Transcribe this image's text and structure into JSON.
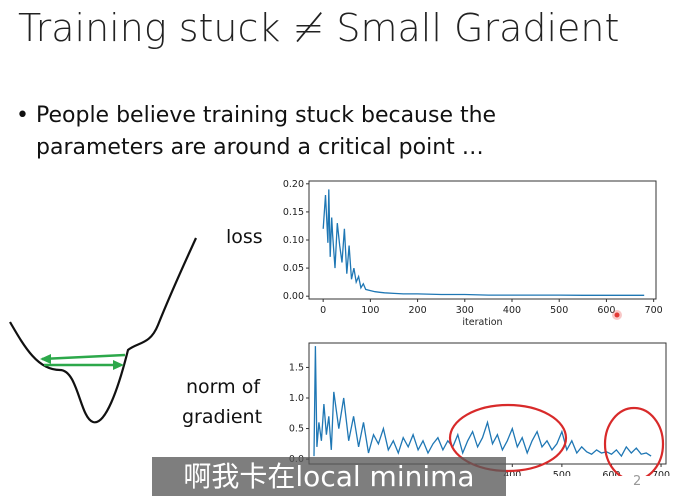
{
  "slide": {
    "title": "Training stuck ≠ Small Gradient",
    "bullet": "People believe training stuck because the parameters are around a critical point …",
    "page_number": "2"
  },
  "labels": {
    "loss": "loss",
    "norm": [
      "norm of",
      "gradient"
    ]
  },
  "caption": "啊我卡在local minima",
  "colors": {
    "series": "#1f77b4",
    "arrows": "#2ca84a",
    "circles": "#d82a2a",
    "cursor": "#e53935"
  },
  "chart_data": [
    {
      "type": "line",
      "ylabel": "loss",
      "xlabel": "iteration",
      "xlim": [
        -30,
        705
      ],
      "ylim": [
        -0.005,
        0.205
      ],
      "x_ticks": [
        "0",
        "100",
        "200",
        "300",
        "400",
        "500",
        "600",
        "700"
      ],
      "y_ticks": [
        "0.00",
        "0.05",
        "0.10",
        "0.15",
        "0.20"
      ],
      "x_tick_values": [
        0,
        100,
        200,
        300,
        400,
        500,
        600,
        700
      ],
      "y_tick_values": [
        0.0,
        0.05,
        0.1,
        0.15,
        0.2
      ],
      "series": [
        {
          "x": [
            0,
            5,
            10,
            12,
            15,
            18,
            20,
            25,
            30,
            35,
            40,
            45,
            50,
            55,
            60,
            65,
            70,
            75,
            80,
            85,
            90,
            100,
            110,
            120,
            130,
            150,
            170,
            200,
            250,
            300,
            350,
            400,
            450,
            500,
            550,
            600,
            650,
            680
          ],
          "values": [
            0.12,
            0.18,
            0.095,
            0.19,
            0.07,
            0.14,
            0.11,
            0.05,
            0.13,
            0.09,
            0.06,
            0.12,
            0.04,
            0.09,
            0.03,
            0.05,
            0.025,
            0.035,
            0.015,
            0.022,
            0.012,
            0.01,
            0.008,
            0.007,
            0.006,
            0.005,
            0.004,
            0.004,
            0.003,
            0.003,
            0.002,
            0.002,
            0.002,
            0.002,
            0.0015,
            0.0015,
            0.0015,
            0.0015
          ]
        }
      ]
    },
    {
      "type": "line",
      "ylabel": "norm of gradient",
      "xlim": [
        -10,
        710
      ],
      "ylim": [
        -0.08,
        1.9
      ],
      "x_ticks": [
        "400",
        "500",
        "600",
        "700"
      ],
      "y_ticks": [
        "0.0",
        "0.5",
        "1.0",
        "1.5"
      ],
      "x_tick_values": [
        400,
        500,
        600,
        700
      ],
      "y_tick_values": [
        0.0,
        0.5,
        1.0,
        1.5
      ],
      "series": [
        {
          "x": [
            0,
            3,
            6,
            10,
            15,
            20,
            25,
            30,
            35,
            40,
            50,
            60,
            70,
            80,
            90,
            100,
            110,
            120,
            130,
            140,
            150,
            160,
            170,
            180,
            190,
            200,
            210,
            220,
            230,
            240,
            250,
            260,
            270,
            280,
            290,
            300,
            310,
            320,
            330,
            340,
            350,
            360,
            370,
            380,
            390,
            400,
            410,
            420,
            430,
            440,
            450,
            460,
            470,
            480,
            490,
            500,
            510,
            520,
            530,
            540,
            550,
            560,
            570,
            580,
            590,
            600,
            610,
            620,
            630,
            640,
            650,
            660,
            670,
            680
          ],
          "values": [
            0.05,
            1.85,
            0.2,
            0.6,
            0.3,
            0.9,
            0.4,
            0.7,
            0.15,
            1.1,
            0.5,
            1.0,
            0.3,
            0.7,
            0.2,
            0.6,
            0.1,
            0.4,
            0.25,
            0.5,
            0.15,
            0.3,
            0.1,
            0.35,
            0.2,
            0.4,
            0.15,
            0.3,
            0.1,
            0.25,
            0.35,
            0.15,
            0.3,
            0.2,
            0.4,
            0.1,
            0.3,
            0.45,
            0.2,
            0.35,
            0.6,
            0.25,
            0.4,
            0.15,
            0.3,
            0.5,
            0.2,
            0.35,
            0.1,
            0.3,
            0.45,
            0.2,
            0.3,
            0.15,
            0.25,
            0.45,
            0.15,
            0.3,
            0.1,
            0.2,
            0.12,
            0.08,
            0.15,
            0.1,
            0.12,
            0.08,
            0.15,
            0.05,
            0.2,
            0.1,
            0.18,
            0.08,
            0.1,
            0.05
          ]
        }
      ]
    }
  ]
}
